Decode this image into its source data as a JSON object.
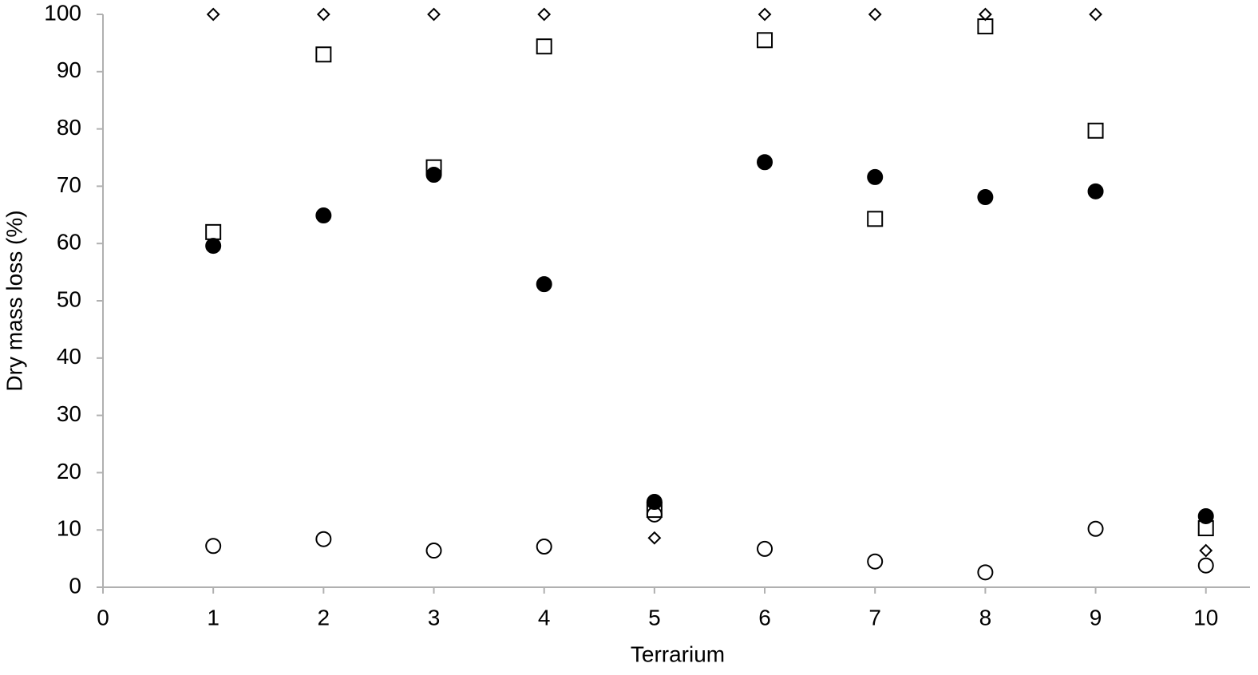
{
  "chart_data": {
    "type": "scatter",
    "xlabel": "Terrarium",
    "ylabel": "Dry mass loss (%)",
    "x": [
      1,
      2,
      3,
      4,
      5,
      6,
      7,
      8,
      9,
      10
    ],
    "xlim": [
      0,
      10.4
    ],
    "xticks": [
      0,
      1,
      2,
      3,
      4,
      5,
      6,
      7,
      8,
      9,
      10
    ],
    "ylim": [
      0,
      100
    ],
    "yticks": [
      0,
      10,
      20,
      30,
      40,
      50,
      60,
      70,
      80,
      90,
      100
    ],
    "grid": false,
    "series": [
      {
        "marker": "diamond",
        "filled": false,
        "color": "#000000",
        "values": [
          100,
          100,
          100,
          100,
          8.6,
          100,
          100,
          100,
          100,
          6.4
        ]
      },
      {
        "marker": "square",
        "filled": false,
        "color": "#000000",
        "values": [
          62.0,
          93.0,
          73.3,
          94.4,
          13.5,
          95.5,
          64.3,
          97.9,
          79.7,
          10.3
        ]
      },
      {
        "marker": "circle",
        "filled": true,
        "color": "#000000",
        "values": [
          59.6,
          64.9,
          72.0,
          52.9,
          14.9,
          74.2,
          71.6,
          68.1,
          69.1,
          12.4
        ]
      },
      {
        "marker": "circle",
        "filled": false,
        "color": "#000000",
        "values": [
          7.2,
          8.4,
          6.4,
          7.1,
          12.7,
          6.7,
          4.5,
          2.6,
          10.2,
          3.8
        ]
      }
    ]
  }
}
